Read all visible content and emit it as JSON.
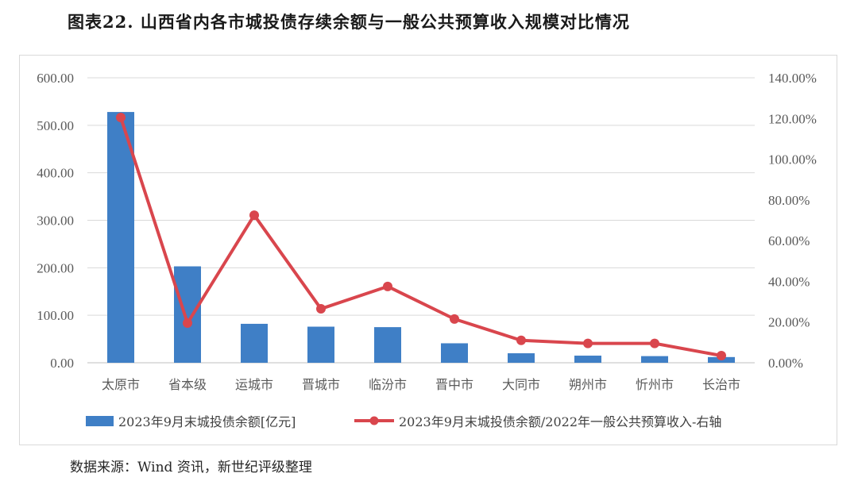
{
  "title": "图表22. 山西省内各市城投债存续余额与一般公共预算收入规模对比情况",
  "source": "数据来源：Wind 资讯，新世纪评级整理",
  "colors": {
    "bar": "#3f7fc6",
    "line": "#d9464d",
    "grid": "#d9d9d9"
  },
  "chart_data": {
    "type": "bar",
    "combo": "bar + line (secondary right axis)",
    "categories": [
      "太原市",
      "省本级",
      "运城市",
      "晋城市",
      "临汾市",
      "晋中市",
      "大同市",
      "朔州市",
      "忻州市",
      "长治市"
    ],
    "series": [
      {
        "name": "2023年9月末城投债余额[亿元]",
        "type": "bar",
        "axis": "left",
        "values": [
          528,
          203,
          82,
          76,
          75,
          41,
          20,
          15,
          14,
          12
        ]
      },
      {
        "name": "2023年9月末城投债余额/2022年一般公共预算收入-右轴",
        "type": "line",
        "axis": "right",
        "values": [
          120.5,
          19.5,
          72.5,
          26.5,
          37.5,
          21.5,
          11,
          9.5,
          9.5,
          3.5
        ]
      }
    ],
    "ylim_left": [
      0,
      600
    ],
    "yticks_left": [
      "600.00",
      "500.00",
      "400.00",
      "300.00",
      "200.00",
      "100.00",
      "0.00"
    ],
    "ylim_right": [
      0,
      140
    ],
    "yticks_right": [
      "140.00%",
      "120.00%",
      "100.00%",
      "80.00%",
      "60.00%",
      "40.00%",
      "20.00%",
      "0.00%"
    ],
    "grid": true,
    "legend_position": "bottom"
  }
}
